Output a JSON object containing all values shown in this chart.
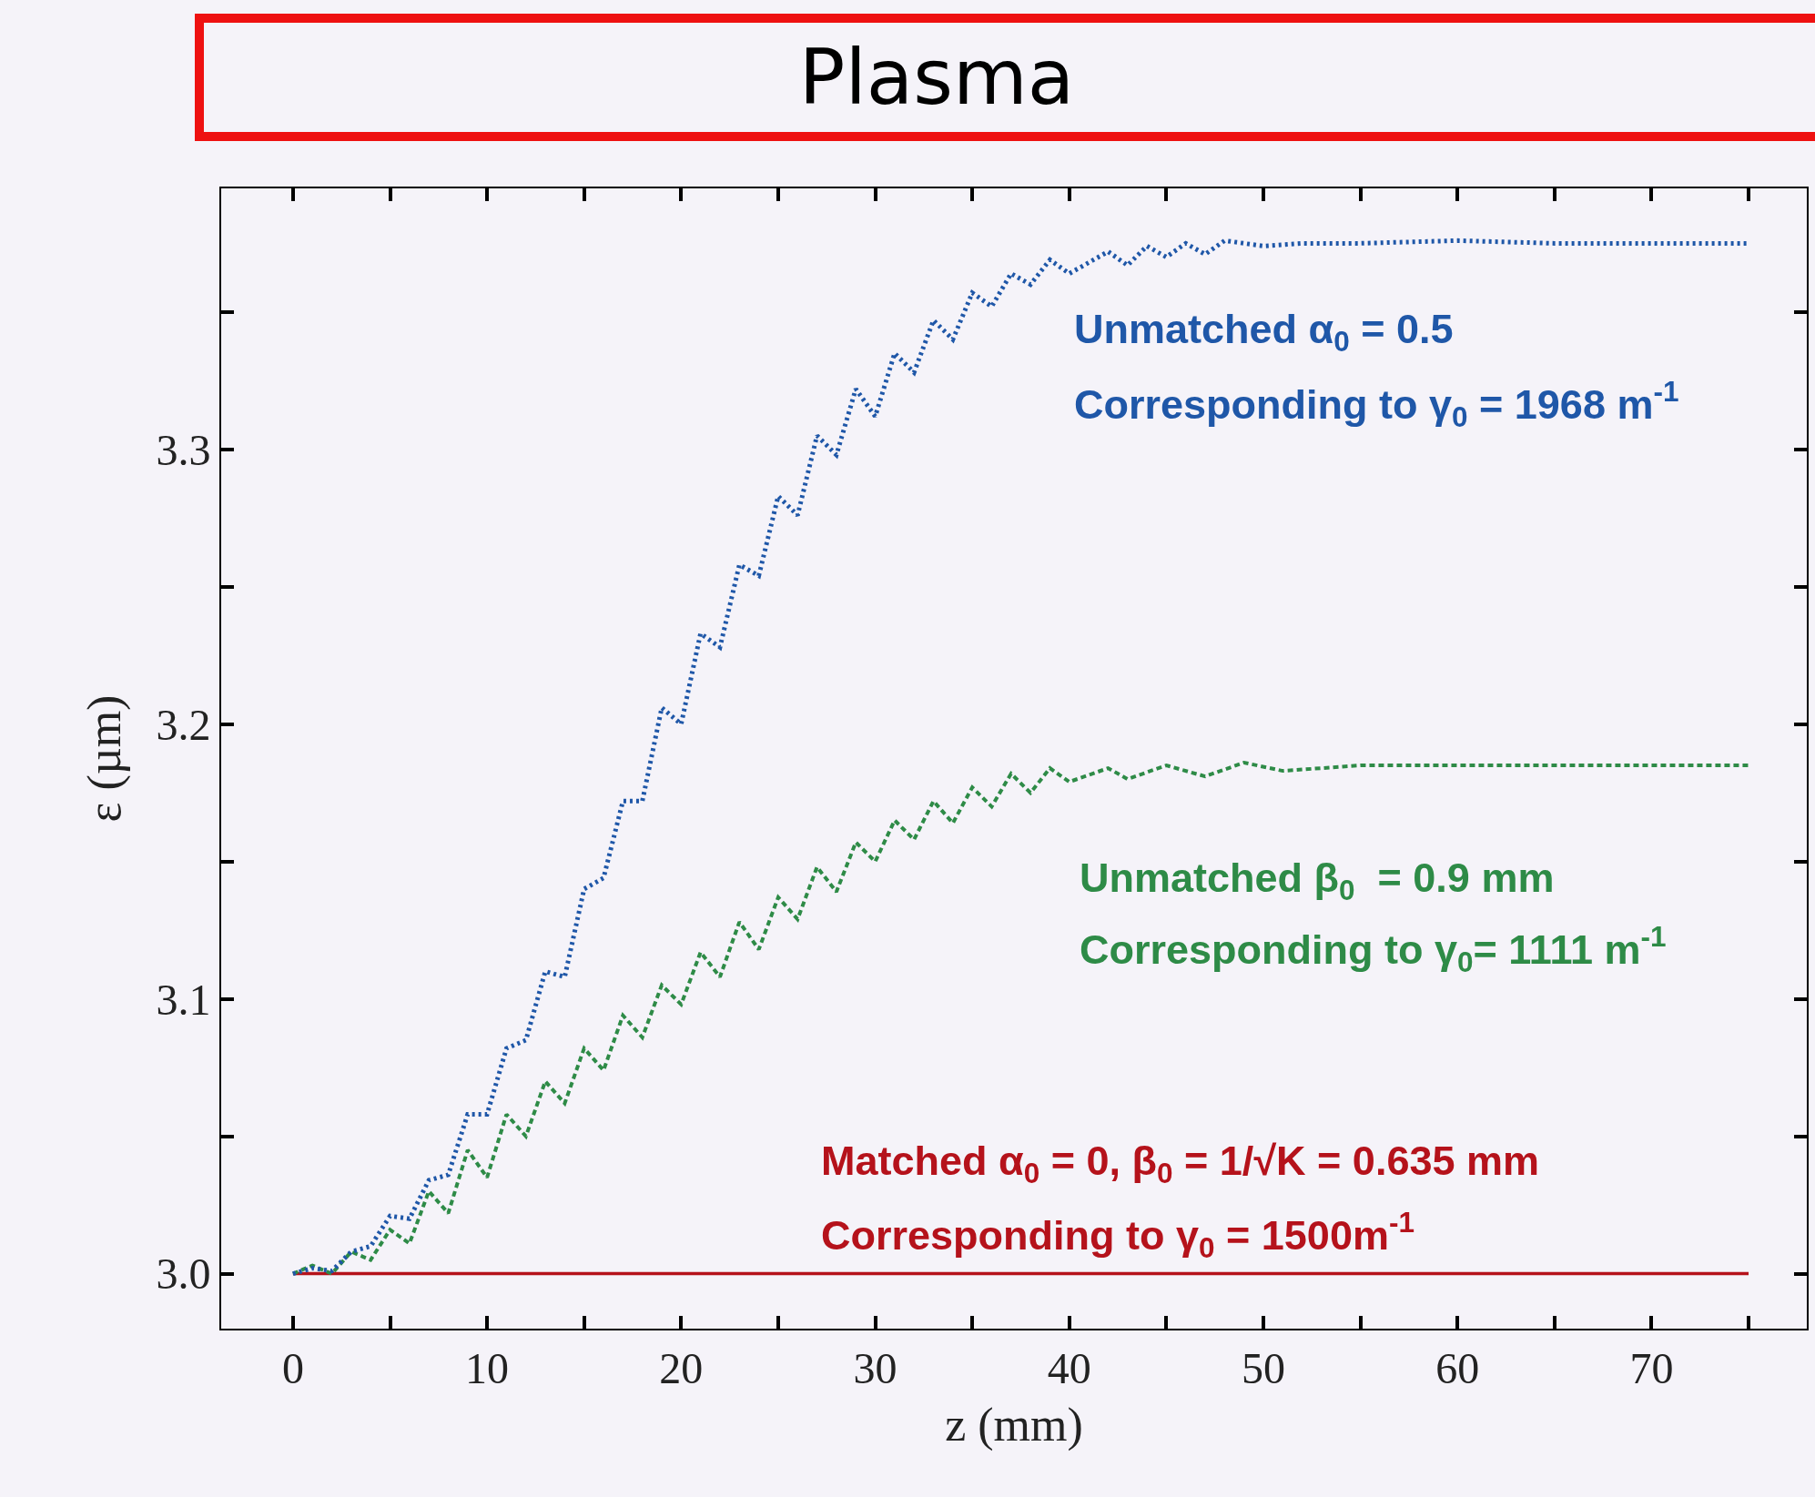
{
  "chart_data": {
    "type": "line",
    "title": "Plasma",
    "xlabel": "z (mm)",
    "ylabel": "ε (µm)",
    "xlim": [
      -3.7,
      78
    ],
    "ylim": [
      2.98,
      3.395
    ],
    "xticks": [
      0,
      {
        "value": 5,
        "label": null
      },
      10,
      {
        "value": 15,
        "label": null
      },
      20,
      {
        "value": 25,
        "label": null
      },
      30,
      {
        "value": 35,
        "label": null
      },
      40,
      {
        "value": 45,
        "label": null
      },
      50,
      {
        "value": 55,
        "label": null
      },
      60,
      {
        "value": 65,
        "label": null
      },
      70,
      {
        "value": 75,
        "label": null
      }
    ],
    "yticks": [
      {
        "value": 3.0,
        "label": "3.0"
      },
      {
        "value": 3.05,
        "label": null
      },
      3.1,
      {
        "value": 3.15,
        "label": null
      },
      3.2,
      {
        "value": 3.25,
        "label": null
      },
      3.3,
      {
        "value": 3.35,
        "label": null
      }
    ],
    "grid": false,
    "marker": "none",
    "series": [
      {
        "color": "#1f57a8",
        "line_style": "dotted",
        "x": [
          0,
          1,
          2,
          3,
          4,
          5,
          6,
          7,
          8,
          9,
          10,
          11,
          12,
          13,
          14,
          15,
          16,
          17,
          18,
          19,
          20,
          21,
          22,
          23,
          24,
          25,
          26,
          27,
          28,
          29,
          30,
          31,
          32,
          33,
          34,
          35,
          36,
          37,
          38,
          39,
          40,
          42,
          43,
          44,
          45,
          46,
          47,
          48,
          50,
          52,
          55,
          60,
          65,
          70,
          75
        ],
        "values": [
          3.0,
          3.002,
          3.001,
          3.008,
          3.01,
          3.021,
          3.02,
          3.034,
          3.036,
          3.058,
          3.058,
          3.082,
          3.085,
          3.11,
          3.108,
          3.14,
          3.144,
          3.172,
          3.172,
          3.206,
          3.2,
          3.233,
          3.228,
          3.258,
          3.254,
          3.283,
          3.276,
          3.305,
          3.298,
          3.322,
          3.312,
          3.335,
          3.328,
          3.347,
          3.34,
          3.357,
          3.352,
          3.364,
          3.36,
          3.369,
          3.364,
          3.372,
          3.367,
          3.374,
          3.37,
          3.375,
          3.371,
          3.376,
          3.374,
          3.375,
          3.375,
          3.376,
          3.375,
          3.375,
          3.375
        ]
      },
      {
        "color": "#2e8b47",
        "line_style": "dashed",
        "x": [
          0,
          1,
          2,
          3,
          4,
          5,
          6,
          7,
          8,
          9,
          10,
          11,
          12,
          13,
          14,
          15,
          16,
          17,
          18,
          19,
          20,
          21,
          22,
          23,
          24,
          25,
          26,
          27,
          28,
          29,
          30,
          31,
          32,
          33,
          34,
          35,
          36,
          37,
          38,
          39,
          40,
          42,
          43,
          45,
          47,
          49,
          51,
          55,
          60,
          65,
          75
        ],
        "values": [
          3.0,
          3.003,
          3.0,
          3.008,
          3.005,
          3.016,
          3.011,
          3.03,
          3.022,
          3.045,
          3.035,
          3.058,
          3.05,
          3.07,
          3.062,
          3.082,
          3.074,
          3.094,
          3.086,
          3.105,
          3.098,
          3.117,
          3.108,
          3.128,
          3.118,
          3.137,
          3.129,
          3.148,
          3.139,
          3.157,
          3.15,
          3.165,
          3.158,
          3.172,
          3.164,
          3.177,
          3.17,
          3.182,
          3.175,
          3.184,
          3.179,
          3.184,
          3.18,
          3.185,
          3.181,
          3.186,
          3.183,
          3.185,
          3.185,
          3.185,
          3.185
        ]
      },
      {
        "color": "#b5121b",
        "line_style": "solid",
        "x": [
          0,
          10,
          20,
          30,
          40,
          50,
          60,
          70,
          75
        ],
        "values": [
          3.0,
          3.0,
          3.0,
          3.0,
          3.0,
          3.0,
          3.0,
          3.0,
          3.0
        ]
      }
    ],
    "annotations": [
      "Unmatched α$_{0}$ = 0.5",
      "Corresponding to γ$_{0}$ = 1968 m$^{-1}$",
      "Unmatched β$_{0}$  = 0.9 mm",
      "Corresponding to γ$_{0}$= 1111 m$^{-1}$",
      "Matched α$_{0}$ = 0, β$_{0}$ = 1/√K = 0.635 mm",
      "Corresponding to γ$_{0}$ = 1500m$^{-1}$"
    ]
  }
}
